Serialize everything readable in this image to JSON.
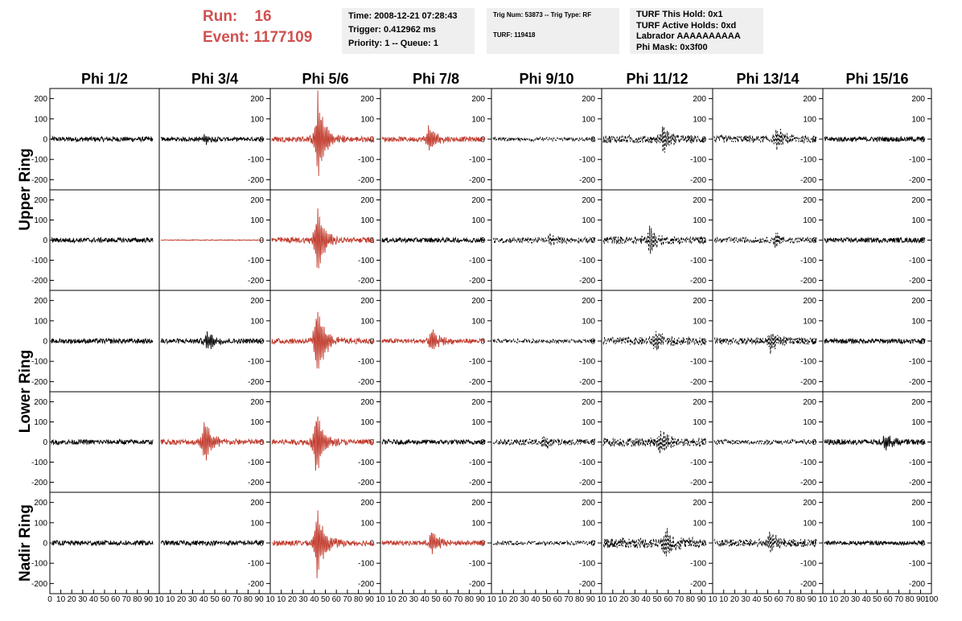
{
  "header": {
    "run_label": "Run:",
    "run_value": "16",
    "event_label": "Event:",
    "event_value": "1177109",
    "time": "Time: 2008-12-21 07:28:43",
    "trigger": "Trigger: 0.412962 ms",
    "priority": "Priority: 1 -- Queue: 1",
    "trig_num": "Trig Num: 53873 -- Trig Type: RF",
    "turf": "TURF: 119418",
    "turf_hold": "TURF This Hold: 0x1",
    "turf_active": "TURF Active Holds: 0xd",
    "labrador": "Labrador AAAAAAAAAA",
    "phi_mask": "Phi Mask: 0x3f00",
    "accent_color": "#d05050"
  },
  "chart_data": {
    "type": "line",
    "columns": [
      "Phi 1/2",
      "Phi 3/4",
      "Phi 5/6",
      "Phi 7/8",
      "Phi 9/10",
      "Phi 11/12",
      "Phi 13/14",
      "Phi 15/16"
    ],
    "ring_labels": [
      {
        "text": "Upper Ring",
        "rows": [
          0,
          1
        ]
      },
      {
        "text": "Lower Ring",
        "rows": [
          2,
          3
        ]
      },
      {
        "text": "Nadir Ring",
        "rows": [
          4
        ]
      }
    ],
    "ylim": [
      -250,
      250
    ],
    "yticks": [
      "200",
      "100",
      "0",
      "-100",
      "-200"
    ],
    "xlim": [
      0,
      100
    ],
    "xtick_labels": [
      [
        "0",
        "10",
        "20",
        "30",
        "40",
        "50",
        "60",
        "70",
        "80",
        "90",
        "10"
      ],
      [
        "10",
        "20",
        "30",
        "40",
        "50",
        "60",
        "70",
        "80",
        "90",
        "10"
      ],
      [
        "10",
        "20",
        "30",
        "40",
        "50",
        "60",
        "70",
        "80",
        "90",
        "10"
      ],
      [
        "10",
        "20",
        "30",
        "40",
        "50",
        "60",
        "70",
        "80",
        "90",
        "10"
      ],
      [
        "10",
        "20",
        "30",
        "40",
        "50",
        "60",
        "70",
        "80",
        "90",
        "10"
      ],
      [
        "10",
        "20",
        "30",
        "40",
        "50",
        "60",
        "70",
        "80",
        "90",
        "10"
      ],
      [
        "10",
        "20",
        "30",
        "40",
        "50",
        "60",
        "70",
        "80",
        "90",
        "10"
      ],
      [
        "10",
        "20",
        "30",
        "40",
        "50",
        "60",
        "70",
        "80",
        "90",
        "100"
      ]
    ],
    "colors": {
      "normal": "#000000",
      "triggered": "#c0392b"
    },
    "styles": [
      "solid",
      "solid",
      "solid",
      "solid",
      "dashed",
      "dashed",
      "dashed",
      "solid"
    ],
    "panels": [
      [
        {
          "color": "normal",
          "noise": 12,
          "burst": null
        },
        {
          "color": "normal",
          "noise": 10,
          "burst": {
            "center": 42,
            "amp": 30
          }
        },
        {
          "color": "triggered",
          "noise": 14,
          "burst": {
            "center": 45,
            "amp": 240
          }
        },
        {
          "color": "triggered",
          "noise": 12,
          "burst": {
            "center": 45,
            "amp": 80
          }
        },
        {
          "color": "normal",
          "noise": 10,
          "burst": null
        },
        {
          "color": "normal",
          "noise": 20,
          "burst": {
            "center": 58,
            "amp": 75
          }
        },
        {
          "color": "normal",
          "noise": 18,
          "burst": {
            "center": 62,
            "amp": 70
          }
        },
        {
          "color": "normal",
          "noise": 12,
          "burst": null
        }
      ],
      [
        {
          "color": "normal",
          "noise": 12,
          "burst": null
        },
        {
          "color": "triggered",
          "noise": 2,
          "burst": null
        },
        {
          "color": "triggered",
          "noise": 14,
          "burst": {
            "center": 44,
            "amp": 210
          }
        },
        {
          "color": "normal",
          "noise": 12,
          "burst": null
        },
        {
          "color": "normal",
          "noise": 14,
          "burst": {
            "center": 55,
            "amp": 35
          }
        },
        {
          "color": "normal",
          "noise": 20,
          "burst": {
            "center": 45,
            "amp": 65
          }
        },
        {
          "color": "normal",
          "noise": 14,
          "burst": {
            "center": 60,
            "amp": 40
          }
        },
        {
          "color": "normal",
          "noise": 12,
          "burst": null
        }
      ],
      [
        {
          "color": "normal",
          "noise": 12,
          "burst": null
        },
        {
          "color": "normal",
          "noise": 12,
          "burst": {
            "center": 45,
            "amp": 60
          }
        },
        {
          "color": "triggered",
          "noise": 14,
          "burst": {
            "center": 44,
            "amp": 220
          }
        },
        {
          "color": "triggered",
          "noise": 12,
          "burst": {
            "center": 48,
            "amp": 70
          }
        },
        {
          "color": "normal",
          "noise": 10,
          "burst": null
        },
        {
          "color": "normal",
          "noise": 20,
          "burst": {
            "center": 50,
            "amp": 65
          }
        },
        {
          "color": "normal",
          "noise": 18,
          "burst": {
            "center": 55,
            "amp": 60
          }
        },
        {
          "color": "normal",
          "noise": 12,
          "burst": null
        }
      ],
      [
        {
          "color": "normal",
          "noise": 12,
          "burst": null
        },
        {
          "color": "triggered",
          "noise": 14,
          "burst": {
            "center": 42,
            "amp": 140
          }
        },
        {
          "color": "triggered",
          "noise": 14,
          "burst": {
            "center": 43,
            "amp": 200
          }
        },
        {
          "color": "normal",
          "noise": 12,
          "burst": null
        },
        {
          "color": "normal",
          "noise": 16,
          "burst": {
            "center": 50,
            "amp": 45
          }
        },
        {
          "color": "normal",
          "noise": 22,
          "burst": {
            "center": 55,
            "amp": 75
          }
        },
        {
          "color": "normal",
          "noise": 12,
          "burst": null
        },
        {
          "color": "normal",
          "noise": 14,
          "burst": {
            "center": 60,
            "amp": 50
          }
        }
      ],
      [
        {
          "color": "normal",
          "noise": 12,
          "burst": null
        },
        {
          "color": "normal",
          "noise": 12,
          "burst": null
        },
        {
          "color": "triggered",
          "noise": 14,
          "burst": {
            "center": 44,
            "amp": 200
          }
        },
        {
          "color": "triggered",
          "noise": 12,
          "burst": {
            "center": 48,
            "amp": 70
          }
        },
        {
          "color": "normal",
          "noise": 10,
          "burst": null
        },
        {
          "color": "normal",
          "noise": 26,
          "burst": {
            "center": 60,
            "amp": 90
          }
        },
        {
          "color": "normal",
          "noise": 20,
          "burst": {
            "center": 55,
            "amp": 60
          }
        },
        {
          "color": "normal",
          "noise": 10,
          "burst": null
        }
      ]
    ]
  }
}
